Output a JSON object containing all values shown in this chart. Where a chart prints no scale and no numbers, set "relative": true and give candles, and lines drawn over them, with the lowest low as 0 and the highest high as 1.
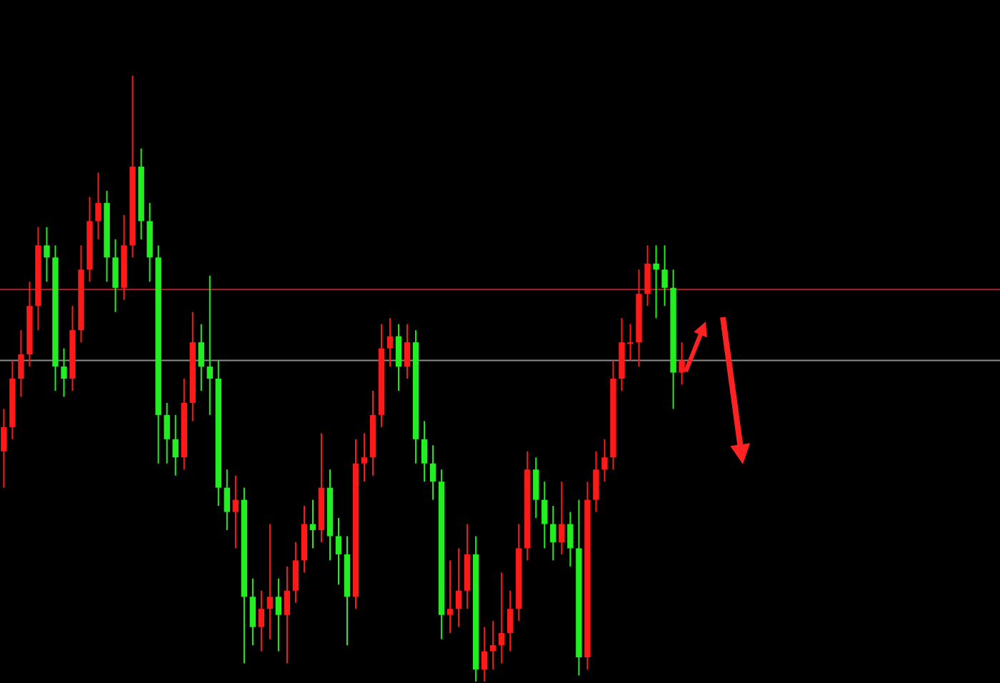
{
  "chart_data": {
    "type": "candlestick",
    "relative": true,
    "categories": [
      null,
      null,
      null,
      null,
      null,
      null,
      null,
      null,
      null,
      null,
      null,
      null,
      null,
      null,
      null,
      null,
      null,
      null,
      null,
      null,
      null,
      null,
      null,
      null,
      null,
      null,
      null,
      null,
      null,
      null,
      null,
      null,
      null,
      null,
      null,
      null,
      null,
      null,
      null,
      null,
      null,
      null,
      null,
      null,
      null,
      null,
      null,
      null,
      null,
      null,
      null,
      null,
      null,
      null,
      null,
      null,
      null,
      null,
      null,
      null,
      null,
      null,
      null,
      null,
      null,
      null,
      null,
      null,
      null,
      null,
      null,
      null,
      null,
      null,
      null,
      null,
      null,
      null,
      null,
      null
    ],
    "ohlc": [
      [
        0.38,
        0.45,
        0.32,
        0.42
      ],
      [
        0.42,
        0.53,
        0.4,
        0.5
      ],
      [
        0.5,
        0.58,
        0.47,
        0.54
      ],
      [
        0.54,
        0.66,
        0.52,
        0.62
      ],
      [
        0.62,
        0.75,
        0.58,
        0.72
      ],
      [
        0.72,
        0.75,
        0.66,
        0.7
      ],
      [
        0.7,
        0.72,
        0.48,
        0.52
      ],
      [
        0.52,
        0.55,
        0.47,
        0.5
      ],
      [
        0.5,
        0.62,
        0.48,
        0.58
      ],
      [
        0.58,
        0.72,
        0.56,
        0.68
      ],
      [
        0.68,
        0.8,
        0.66,
        0.76
      ],
      [
        0.76,
        0.84,
        0.73,
        0.79
      ],
      [
        0.79,
        0.81,
        0.66,
        0.7
      ],
      [
        0.7,
        0.73,
        0.61,
        0.65
      ],
      [
        0.65,
        0.77,
        0.63,
        0.72
      ],
      [
        0.72,
        1.0,
        0.7,
        0.85
      ],
      [
        0.85,
        0.88,
        0.73,
        0.76
      ],
      [
        0.76,
        0.79,
        0.66,
        0.7
      ],
      [
        0.7,
        0.72,
        0.36,
        0.44
      ],
      [
        0.44,
        0.46,
        0.36,
        0.4
      ],
      [
        0.4,
        0.44,
        0.34,
        0.37
      ],
      [
        0.37,
        0.5,
        0.35,
        0.46
      ],
      [
        0.46,
        0.61,
        0.43,
        0.56
      ],
      [
        0.56,
        0.59,
        0.48,
        0.52
      ],
      [
        0.52,
        0.67,
        0.44,
        0.5
      ],
      [
        0.5,
        0.53,
        0.29,
        0.32
      ],
      [
        0.32,
        0.35,
        0.25,
        0.28
      ],
      [
        0.28,
        0.34,
        0.22,
        0.3
      ],
      [
        0.3,
        0.32,
        0.03,
        0.14
      ],
      [
        0.14,
        0.17,
        0.06,
        0.09
      ],
      [
        0.09,
        0.15,
        0.05,
        0.12
      ],
      [
        0.12,
        0.26,
        0.07,
        0.14
      ],
      [
        0.14,
        0.17,
        0.05,
        0.11
      ],
      [
        0.11,
        0.19,
        0.03,
        0.15
      ],
      [
        0.15,
        0.23,
        0.13,
        0.2
      ],
      [
        0.2,
        0.29,
        0.18,
        0.26
      ],
      [
        0.26,
        0.3,
        0.22,
        0.25
      ],
      [
        0.25,
        0.41,
        0.23,
        0.32
      ],
      [
        0.32,
        0.35,
        0.2,
        0.24
      ],
      [
        0.24,
        0.27,
        0.16,
        0.21
      ],
      [
        0.21,
        0.24,
        0.06,
        0.14
      ],
      [
        0.14,
        0.4,
        0.12,
        0.36
      ],
      [
        0.36,
        0.41,
        0.33,
        0.37
      ],
      [
        0.37,
        0.48,
        0.34,
        0.44
      ],
      [
        0.44,
        0.59,
        0.42,
        0.55
      ],
      [
        0.55,
        0.6,
        0.52,
        0.57
      ],
      [
        0.57,
        0.59,
        0.48,
        0.52
      ],
      [
        0.52,
        0.59,
        0.5,
        0.56
      ],
      [
        0.56,
        0.58,
        0.36,
        0.4
      ],
      [
        0.4,
        0.43,
        0.33,
        0.36
      ],
      [
        0.36,
        0.39,
        0.3,
        0.33
      ],
      [
        0.33,
        0.35,
        0.07,
        0.11
      ],
      [
        0.11,
        0.2,
        0.08,
        0.12
      ],
      [
        0.12,
        0.22,
        0.09,
        0.15
      ],
      [
        0.15,
        0.26,
        0.12,
        0.21
      ],
      [
        0.21,
        0.24,
        0.0,
        0.02
      ],
      [
        0.02,
        0.09,
        0.0,
        0.05
      ],
      [
        0.05,
        0.1,
        0.02,
        0.06
      ],
      [
        0.06,
        0.18,
        0.03,
        0.08
      ],
      [
        0.08,
        0.15,
        0.05,
        0.12
      ],
      [
        0.12,
        0.26,
        0.1,
        0.22
      ],
      [
        0.22,
        0.38,
        0.2,
        0.35
      ],
      [
        0.35,
        0.37,
        0.27,
        0.3
      ],
      [
        0.3,
        0.33,
        0.22,
        0.26
      ],
      [
        0.26,
        0.29,
        0.2,
        0.23
      ],
      [
        0.23,
        0.33,
        0.21,
        0.26
      ],
      [
        0.26,
        0.28,
        0.19,
        0.22
      ],
      [
        0.22,
        0.3,
        0.01,
        0.04
      ],
      [
        0.04,
        0.33,
        0.02,
        0.3
      ],
      [
        0.3,
        0.38,
        0.28,
        0.35
      ],
      [
        0.35,
        0.4,
        0.33,
        0.37
      ],
      [
        0.37,
        0.53,
        0.35,
        0.5
      ],
      [
        0.5,
        0.6,
        0.48,
        0.56
      ],
      [
        0.56,
        0.59,
        0.53,
        0.56
      ],
      [
        0.56,
        0.68,
        0.52,
        0.64
      ],
      [
        0.64,
        0.72,
        0.62,
        0.69
      ],
      [
        0.69,
        0.72,
        0.6,
        0.68
      ],
      [
        0.68,
        0.72,
        0.62,
        0.65
      ],
      [
        0.65,
        0.68,
        0.45,
        0.51
      ],
      [
        0.51,
        0.56,
        0.49,
        0.53
      ]
    ],
    "ref_lines": [
      {
        "axis": "y",
        "value": 0.647,
        "color": "#b22222"
      },
      {
        "axis": "y",
        "value": 0.53,
        "color": "#8c8c8c"
      }
    ]
  }
}
